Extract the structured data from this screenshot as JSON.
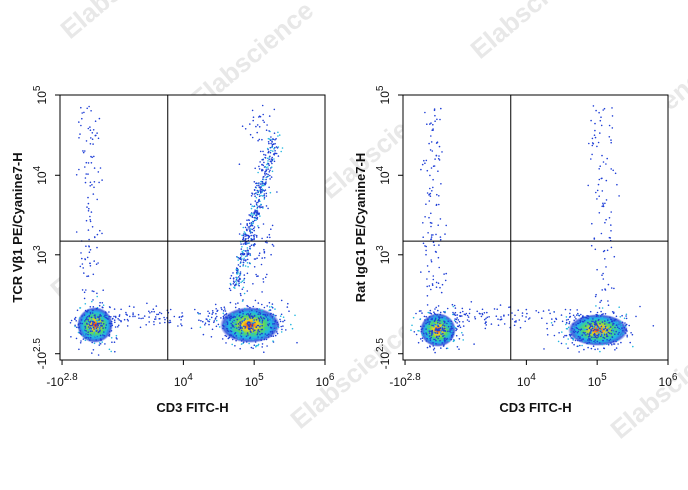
{
  "watermark": "Elabscience",
  "chart_data": [
    {
      "type": "density-scatter",
      "x_label": "CD3 FITC-H",
      "y_label": "TCR Vβ1 PE/Cyanine7-H",
      "xlim": [
        -700,
        1000000
      ],
      "ylim": [
        -400,
        100000
      ],
      "xticks": [
        {
          "value": -631,
          "label": "-10",
          "exponent": "2.8"
        },
        {
          "value": 10000,
          "label": "10",
          "exponent": "4"
        },
        {
          "value": 100000,
          "label": "10",
          "exponent": "5"
        },
        {
          "value": 1000000,
          "label": "10",
          "exponent": "6"
        }
      ],
      "yticks": [
        {
          "value": -316,
          "label": "-10",
          "exponent": "2.5"
        },
        {
          "value": 1000,
          "label": "10",
          "exponent": "3"
        },
        {
          "value": 10000,
          "label": "10",
          "exponent": "4"
        },
        {
          "value": 100000,
          "label": "10",
          "exponent": "5"
        }
      ],
      "gate": {
        "x": 6000,
        "y": 1500
      }
    },
    {
      "type": "density-scatter",
      "x_label": "CD3 FITC-H",
      "y_label": "Rat IgG1 PE/Cyanine7-H",
      "xlim": [
        -700,
        1000000
      ],
      "ylim": [
        -400,
        100000
      ],
      "xticks": [
        {
          "value": -631,
          "label": "-10",
          "exponent": "2.8"
        },
        {
          "value": 10000,
          "label": "10",
          "exponent": "4"
        },
        {
          "value": 100000,
          "label": "10",
          "exponent": "5"
        },
        {
          "value": 1000000,
          "label": "10",
          "exponent": "6"
        }
      ],
      "yticks": [
        {
          "value": -316,
          "label": "-10",
          "exponent": "2.5"
        },
        {
          "value": 1000,
          "label": "10",
          "exponent": "3"
        },
        {
          "value": 10000,
          "label": "10",
          "exponent": "4"
        },
        {
          "value": 100000,
          "label": "10",
          "exponent": "5"
        }
      ],
      "gate": {
        "x": 6000,
        "y": 1500
      }
    }
  ]
}
